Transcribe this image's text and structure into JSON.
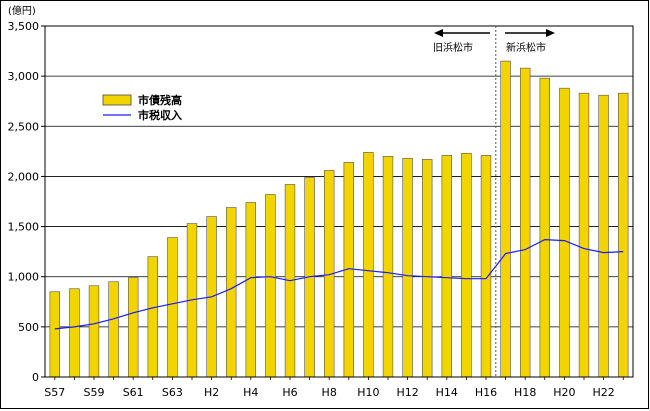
{
  "chart_data": {
    "type": "bar",
    "unit_label": "(億円)",
    "categories": [
      "S57",
      "S58",
      "S59",
      "S60",
      "S61",
      "S62",
      "S63",
      "H1",
      "H2",
      "H3",
      "H4",
      "H5",
      "H6",
      "H7",
      "H8",
      "H9",
      "H10",
      "H11",
      "H12",
      "H13",
      "H14",
      "H15",
      "H16",
      "H17",
      "H18",
      "H19",
      "H20",
      "H21",
      "H22",
      "H23"
    ],
    "x_tick_labels": [
      "S57",
      "S59",
      "S61",
      "S63",
      "H2",
      "H4",
      "H6",
      "H8",
      "H10",
      "H12",
      "H14",
      "H16",
      "H18",
      "H20",
      "H22"
    ],
    "ylim": [
      0,
      3500
    ],
    "y_ticks": [
      "0",
      "500",
      "1,000",
      "1,500",
      "2,000",
      "2,500",
      "3,000",
      "3,500"
    ],
    "grid": "horizontal",
    "legend_position": "upper-left",
    "series": [
      {
        "name": "市債残高",
        "kind": "bar",
        "color": "#f2d400",
        "values": [
          850,
          880,
          910,
          950,
          990,
          1200,
          1390,
          1530,
          1600,
          1690,
          1740,
          1820,
          1920,
          1990,
          2060,
          2140,
          2240,
          2200,
          2180,
          2170,
          2210,
          2230,
          2210,
          3150,
          3080,
          2980,
          2880,
          2830,
          2810,
          2830
        ]
      },
      {
        "name": "市税収入",
        "kind": "line",
        "color": "#1a1aff",
        "values": [
          480,
          500,
          530,
          580,
          640,
          690,
          730,
          770,
          800,
          880,
          990,
          1000,
          960,
          1000,
          1020,
          1080,
          1060,
          1040,
          1010,
          1000,
          990,
          980,
          980,
          1230,
          1270,
          1370,
          1360,
          1280,
          1240,
          1250
        ]
      }
    ],
    "annotations": {
      "old_city": "旧浜松市",
      "new_city": "新浜松市",
      "divider_after": "H16"
    }
  }
}
